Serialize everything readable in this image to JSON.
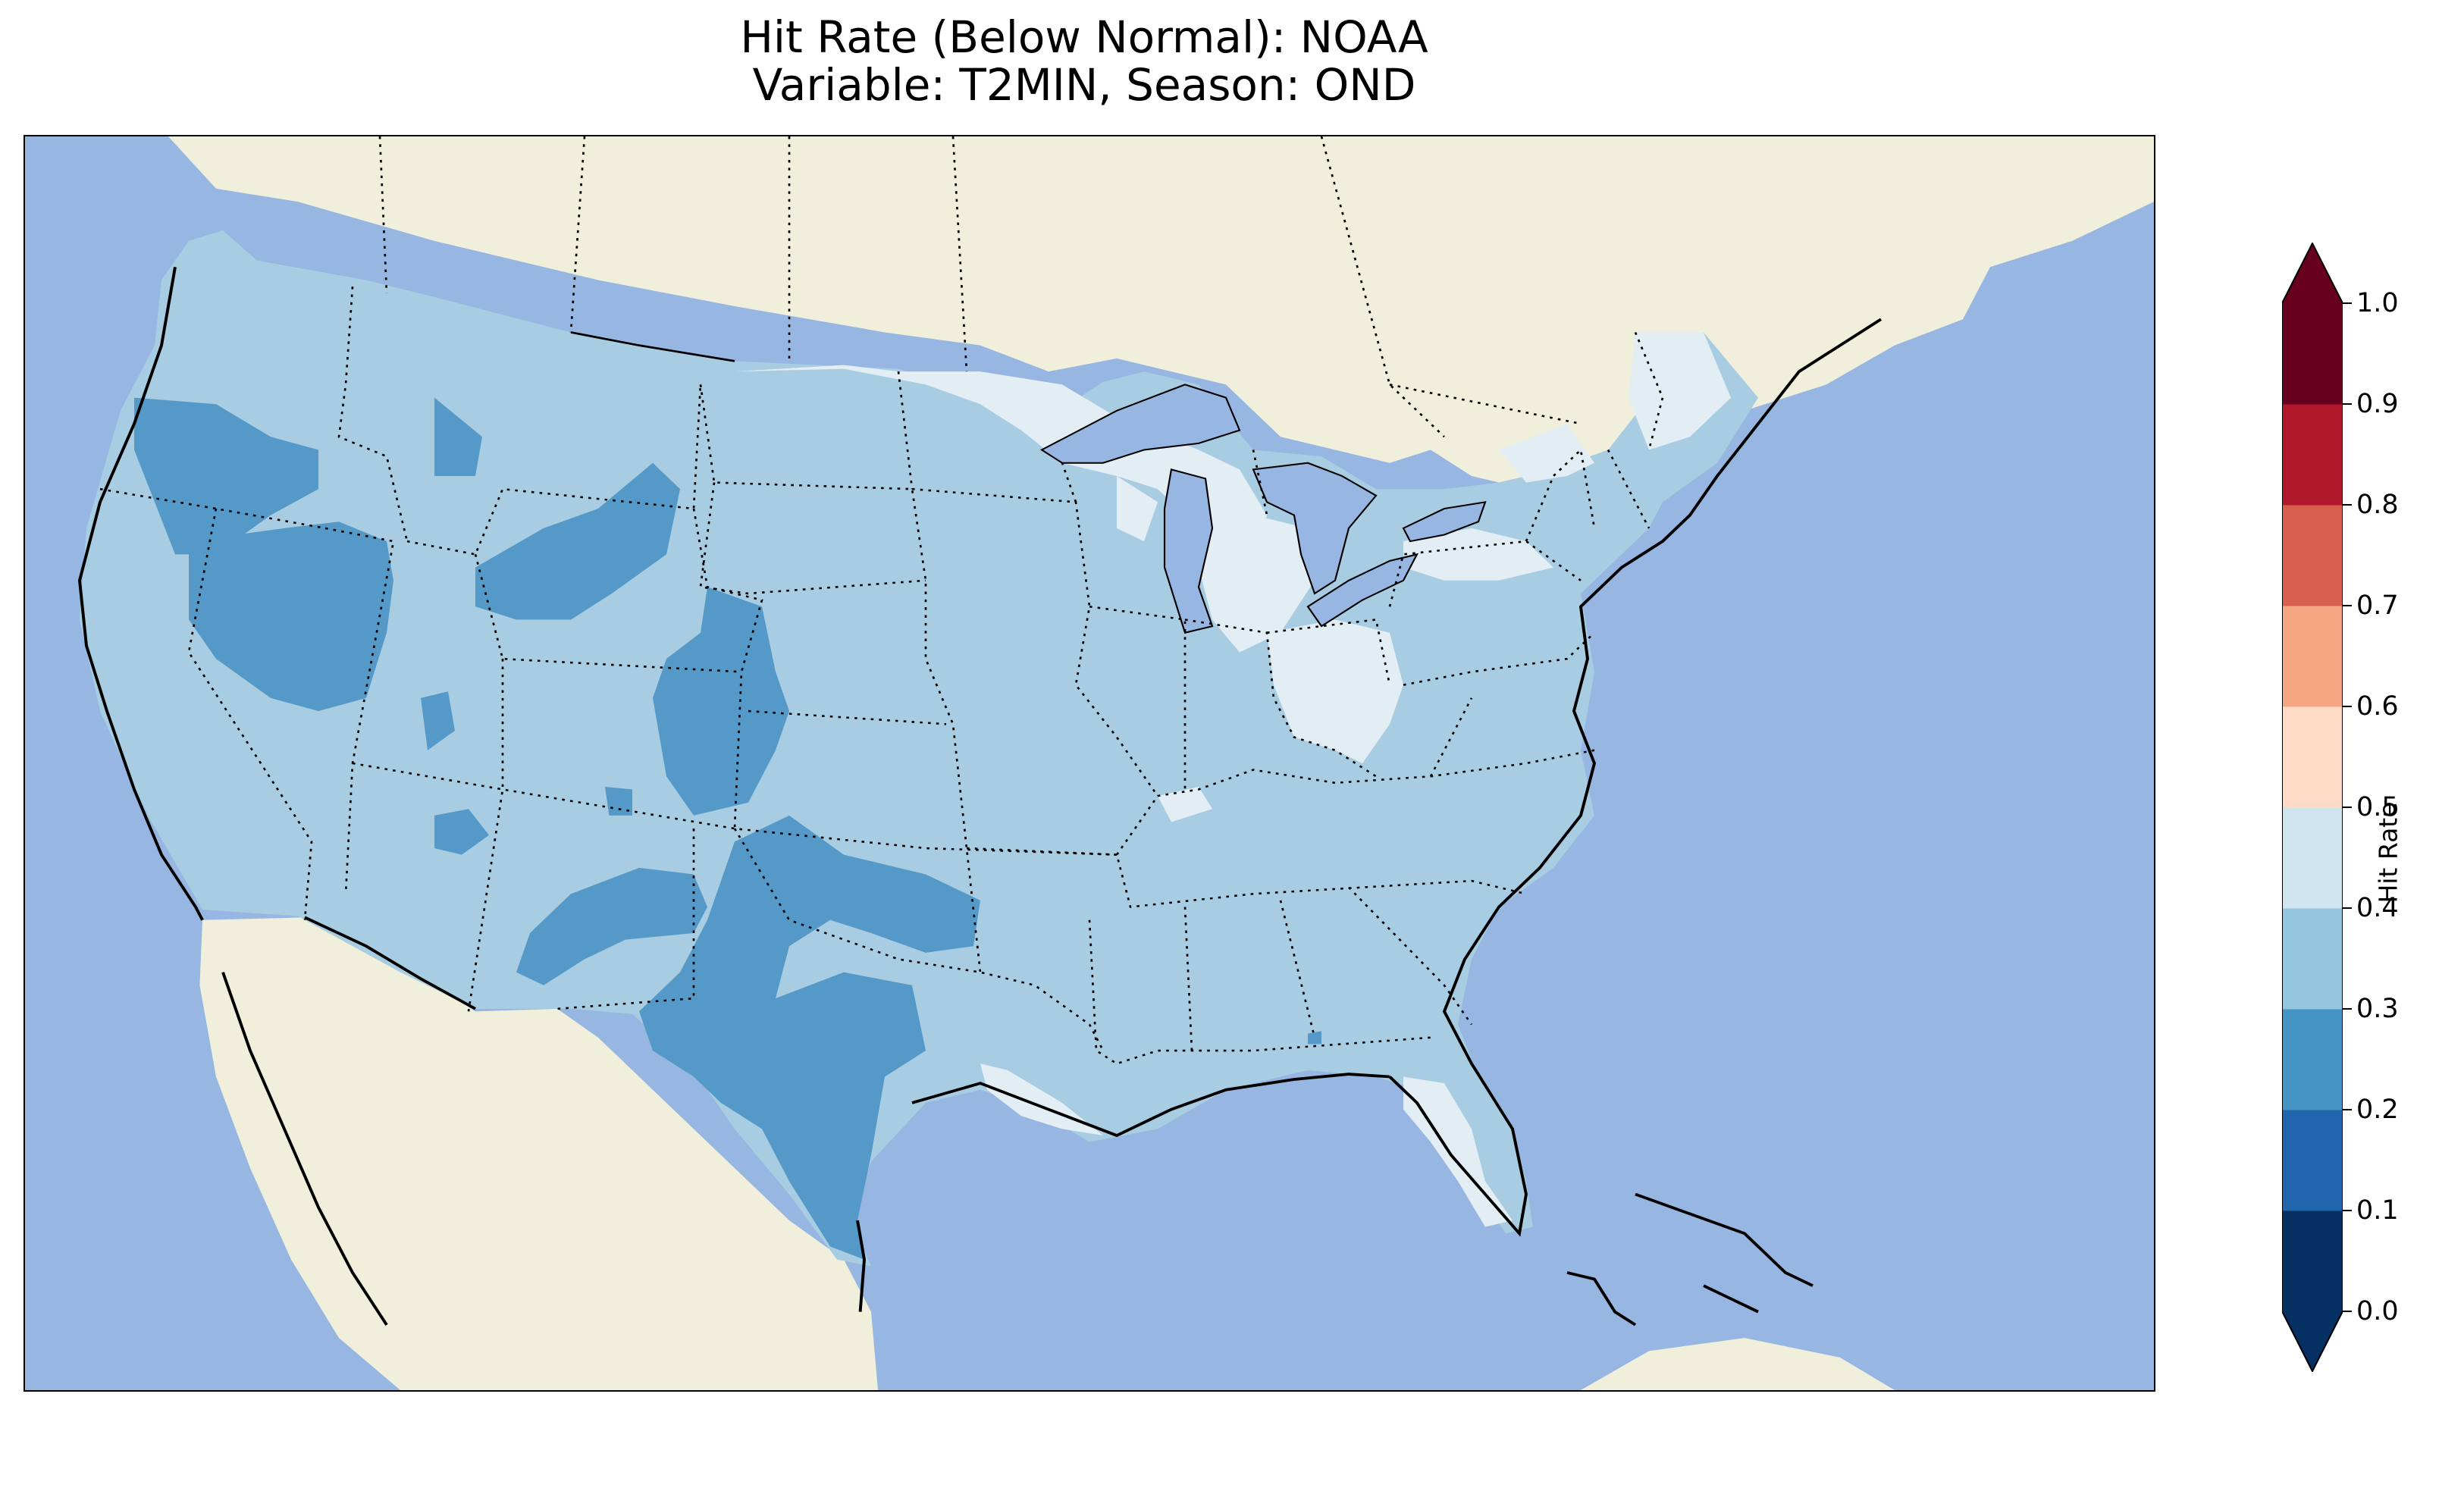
{
  "title": {
    "line1": "Hit Rate (Below Normal): NOAA",
    "line2": "Variable: T2MIN, Season: OND"
  },
  "colorbar": {
    "label": "Hit Rate",
    "ticks": [
      "0.0",
      "0.1",
      "0.2",
      "0.3",
      "0.4",
      "0.5",
      "0.6",
      "0.7",
      "0.8",
      "0.9",
      "1.0"
    ],
    "extend": "both",
    "colors": [
      "#053061",
      "#2166ac",
      "#4393c3",
      "#92c5de",
      "#d1e5f0",
      "#fddbc7",
      "#f4a582",
      "#d6604d",
      "#b2182b",
      "#67001f"
    ],
    "under_color": "#053061",
    "over_color": "#67001f"
  },
  "map": {
    "region": "Contiguous United States",
    "ocean_color": "#97b6e1",
    "land_color": "#efefdb",
    "field_colors": {
      "0.2-0.3": "#5499c7",
      "0.3-0.4": "#a8cde2",
      "0.4-0.5": "#e3edf4"
    },
    "dominant_band": "0.3-0.4",
    "regions_0.2_0.3": [
      "Oregon",
      "Idaho",
      "Nevada",
      "Wyoming",
      "Colorado",
      "New Mexico",
      "Texas",
      "Oklahoma"
    ],
    "regions_0.4_0.5": [
      "Minnesota",
      "Wisconsin",
      "Michigan",
      "Ohio",
      "New York",
      "Maine",
      "Florida"
    ]
  }
}
